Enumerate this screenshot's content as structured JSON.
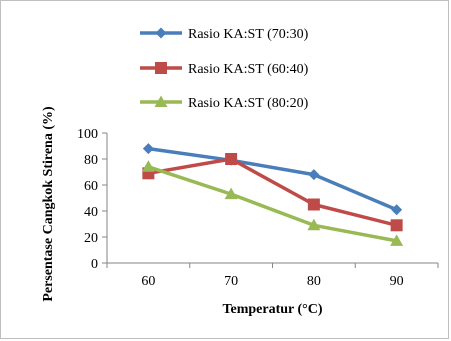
{
  "chart_data": {
    "type": "line",
    "title": "",
    "xlabel": "Temperatur (°C)",
    "ylabel": "Persentase Cangkok Stirena (%)",
    "categories": [
      "60",
      "70",
      "80",
      "90"
    ],
    "ylim": [
      0,
      100
    ],
    "yticks": [
      "0",
      "20",
      "40",
      "60",
      "80",
      "100"
    ],
    "grid": false,
    "legend_position": "top",
    "series": [
      {
        "name": "Rasio KA:ST (70:30)",
        "values": [
          88,
          79,
          68,
          41
        ],
        "color": "#4a7ebb",
        "marker": "diamond"
      },
      {
        "name": "Rasio KA:ST (60:40)",
        "values": [
          69,
          80,
          45,
          29
        ],
        "color": "#be4b48",
        "marker": "square"
      },
      {
        "name": "Rasio KA:ST (80:20)",
        "values": [
          74,
          53,
          29,
          17
        ],
        "color": "#98b954",
        "marker": "triangle"
      }
    ]
  }
}
